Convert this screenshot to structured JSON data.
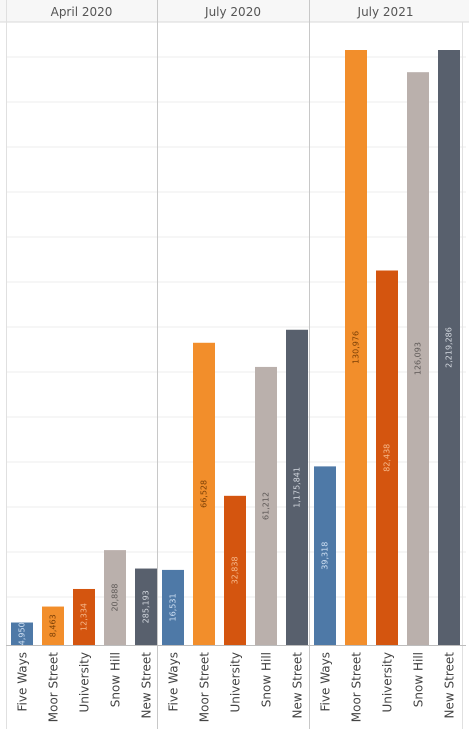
{
  "chart_data": {
    "type": "bar",
    "panels": [
      {
        "title": "April 2020",
        "categories": [
          "Five Ways",
          "Moor Street",
          "University",
          "Snow Hill",
          "New Street"
        ],
        "values": [
          4950,
          8463,
          12334,
          20888,
          285193
        ],
        "value_labels": [
          "4,950",
          "8,463",
          "12,334",
          "20,888",
          "285,193"
        ]
      },
      {
        "title": "July 2020",
        "categories": [
          "Five Ways",
          "Moor Street",
          "University",
          "Snow Hill",
          "New Street"
        ],
        "values": [
          16531,
          66528,
          32838,
          61212,
          1175841
        ],
        "value_labels": [
          "16,531",
          "66,528",
          "32,838",
          "61,212",
          "1,175,841"
        ]
      },
      {
        "title": "July 2021",
        "categories": [
          "Five Ways",
          "Moor Street",
          "University",
          "Snow Hill",
          "New Street"
        ],
        "values": [
          39318,
          130976,
          82438,
          126093,
          2219286
        ],
        "value_labels": [
          "39,318",
          "130,976",
          "82,438",
          "126,093",
          "2,219,286"
        ]
      }
    ],
    "bar_colors": {
      "Five Ways": "#4e79a7",
      "Moor Street": "#f28e2b",
      "University": "#d4550f",
      "Snow Hill": "#bab0ac",
      "New Street": "#58606d"
    },
    "label_colors": {
      "Five Ways": "#cfe0f3",
      "Moor Street": "#7a3f06",
      "University": "#f6b98c",
      "Snow Hill": "#5e5957",
      "New Street": "#d3d8df"
    },
    "grid": true,
    "orientation": "vertical"
  }
}
